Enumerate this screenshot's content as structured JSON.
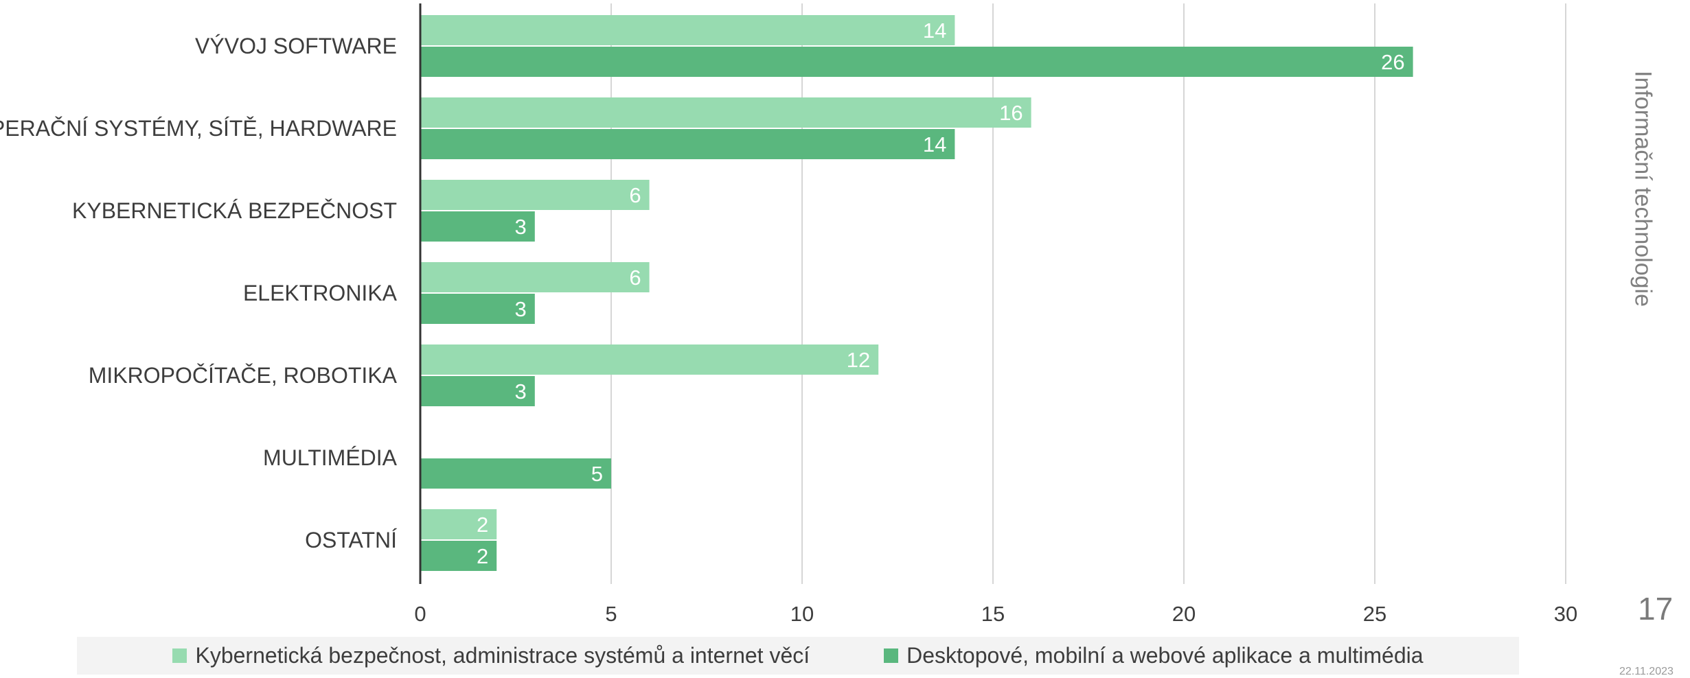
{
  "chart_data": {
    "type": "bar",
    "orientation": "horizontal",
    "categories": [
      "VÝVOJ SOFTWARE",
      "OPERAČNÍ SYSTÉMY, SÍTĚ, HARDWARE",
      "KYBERNETICKÁ BEZPEČNOST",
      "ELEKTRONIKA",
      "MIKROPOČÍTAČE, ROBOTIKA",
      "MULTIMÉDIA",
      "OSTATNÍ"
    ],
    "series": [
      {
        "name": "Kybernetická bezpečnost, administrace systémů a internet věcí",
        "color": "#97dbb0",
        "values": [
          14,
          16,
          6,
          6,
          12,
          null,
          2
        ]
      },
      {
        "name": "Desktopové, mobilní a webové aplikace a multimédia",
        "color": "#5ab77e",
        "values": [
          26,
          14,
          3,
          3,
          3,
          5,
          2
        ]
      }
    ],
    "xlim": [
      0,
      30
    ],
    "xticks": [
      "0",
      "5",
      "10",
      "15",
      "20",
      "25",
      "30"
    ],
    "grid": true,
    "legend_position": "bottom"
  },
  "side_title": "Informační technologie",
  "page_number": "17",
  "date_stamp": "22.11.2023"
}
